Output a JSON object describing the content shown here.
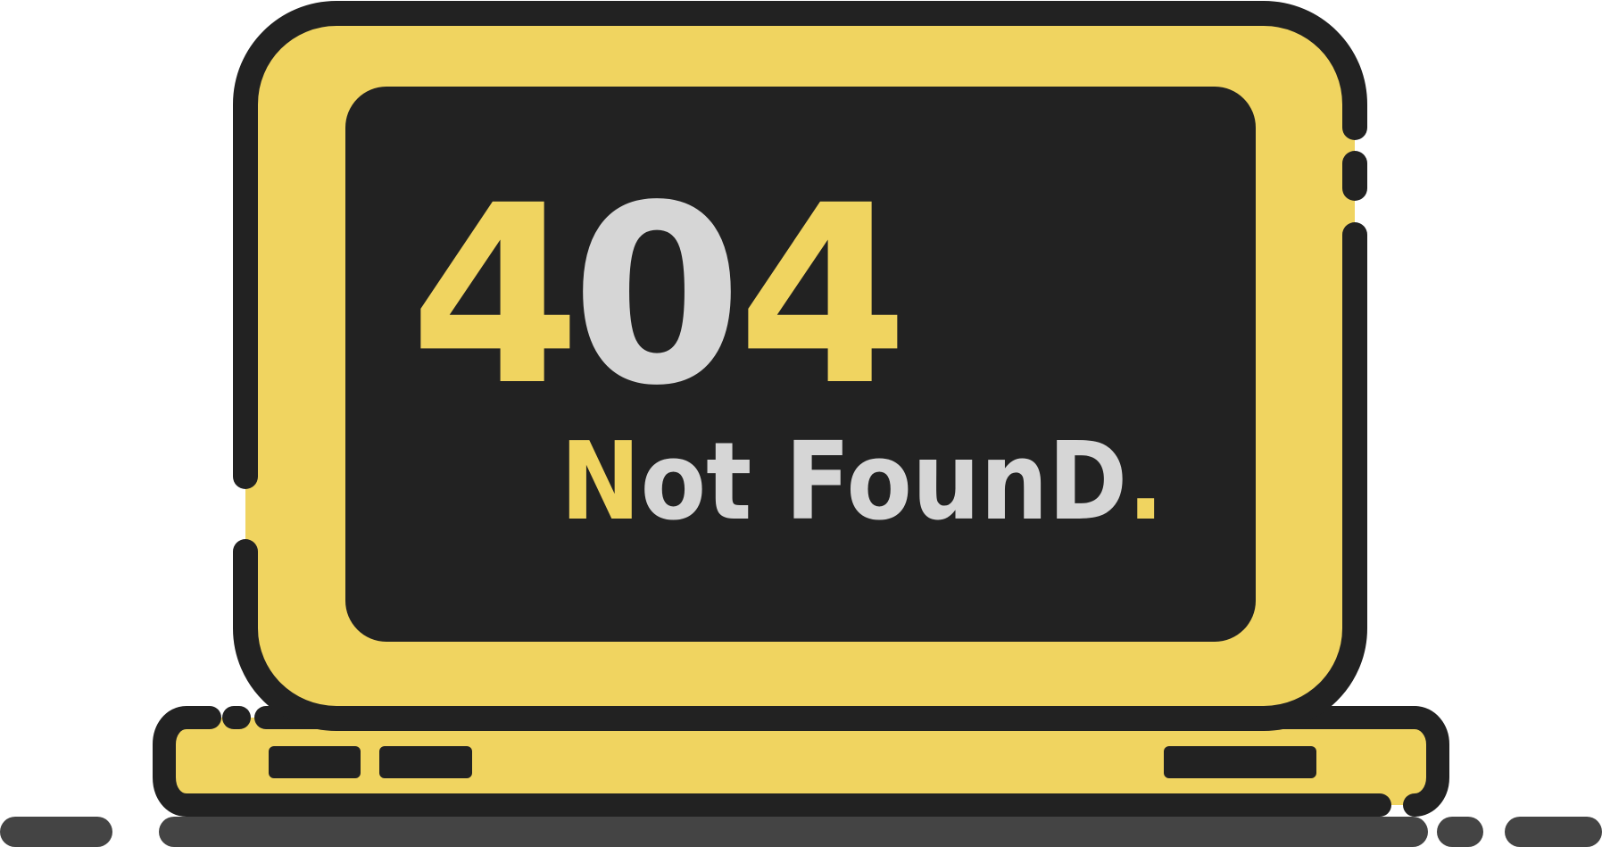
{
  "error": {
    "code_digits": [
      "4",
      "0",
      "4"
    ],
    "message_parts": [
      "N",
      "ot FounD",
      "."
    ]
  },
  "colors": {
    "yellow": "#F0D460",
    "dark": "#222222",
    "light_gray": "#D6D6D6",
    "ground": "#444444",
    "background": "#FFFFFF"
  },
  "icons": {
    "illustration": "laptop-icon"
  }
}
